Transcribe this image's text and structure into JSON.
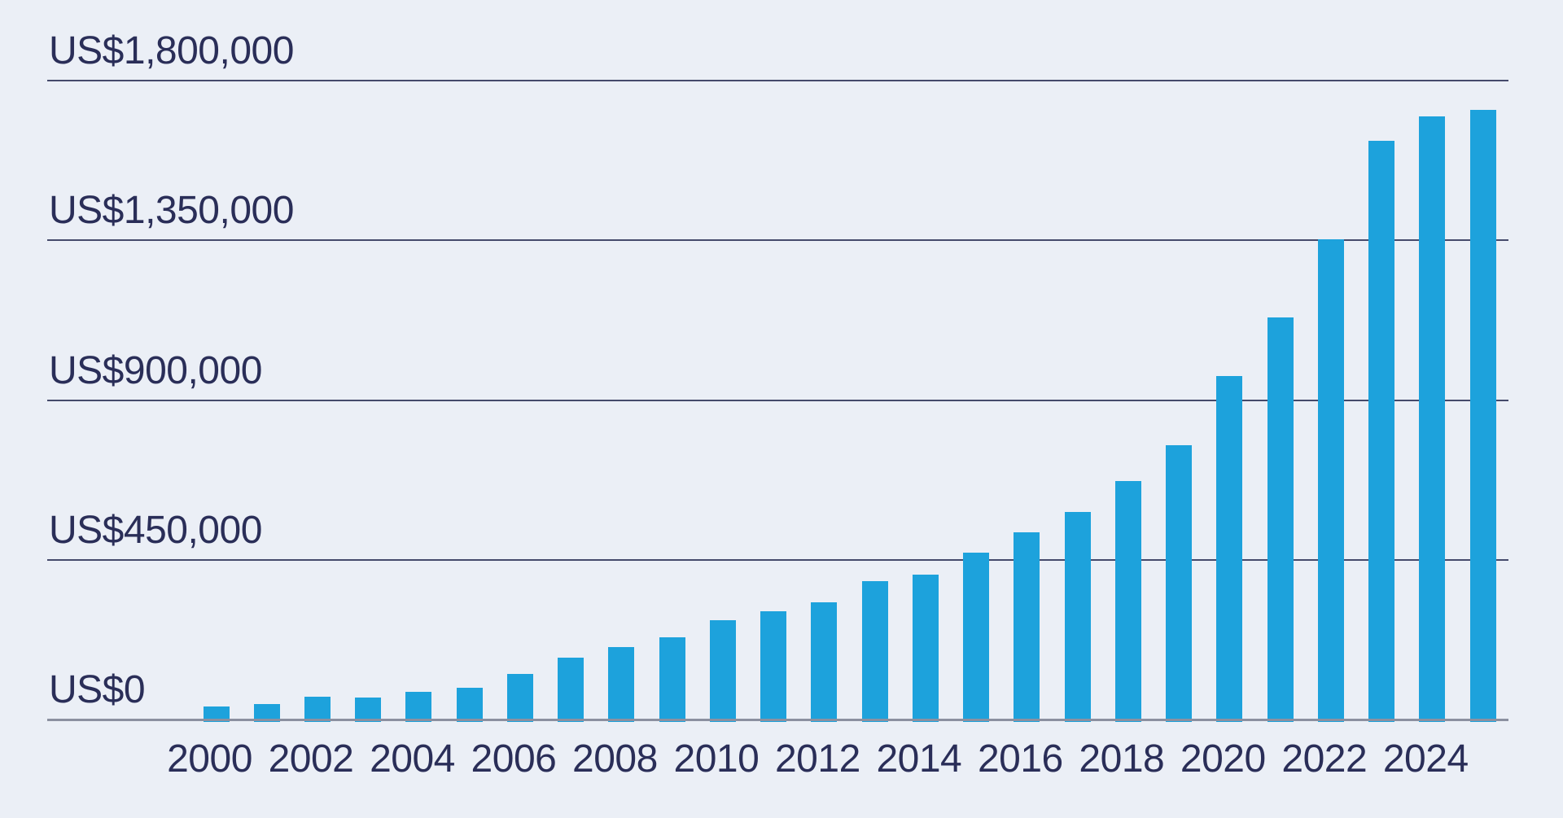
{
  "chart_data": {
    "type": "bar",
    "title": "",
    "xlabel": "",
    "ylabel": "",
    "legend": "none",
    "grid": "horizontal",
    "ylim": [
      0,
      1800000
    ],
    "x": [
      2000,
      2001,
      2002,
      2003,
      2004,
      2005,
      2006,
      2007,
      2008,
      2009,
      2010,
      2011,
      2012,
      2013,
      2014,
      2015,
      2016,
      2017,
      2018,
      2019,
      2020,
      2021,
      2022,
      2023,
      2024,
      2025
    ],
    "values": [
      37000,
      44000,
      64000,
      63000,
      78000,
      90000,
      129000,
      175000,
      205000,
      231000,
      279000,
      305000,
      330000,
      390000,
      409000,
      471000,
      527000,
      584000,
      672000,
      773000,
      967000,
      1132000,
      1352000,
      1630000,
      1698000,
      1718000
    ],
    "yticks": [
      {
        "value": 1800000,
        "label": "US$1,800,000"
      },
      {
        "value": 1350000,
        "label": "US$1,350,000"
      },
      {
        "value": 900000,
        "label": "US$900,000"
      },
      {
        "value": 450000,
        "label": "US$450,000"
      },
      {
        "value": 0,
        "label": "US$0"
      }
    ],
    "xticks": [
      {
        "year": 2000,
        "label": "2000"
      },
      {
        "year": 2002,
        "label": "2002"
      },
      {
        "year": 2004,
        "label": "2004"
      },
      {
        "year": 2006,
        "label": "2006"
      },
      {
        "year": 2008,
        "label": "2008"
      },
      {
        "year": 2010,
        "label": "2010"
      },
      {
        "year": 2012,
        "label": "2012"
      },
      {
        "year": 2014,
        "label": "2014"
      },
      {
        "year": 2016,
        "label": "2016"
      },
      {
        "year": 2018,
        "label": "2018"
      },
      {
        "year": 2020,
        "label": "2020"
      },
      {
        "year": 2022,
        "label": "2022"
      },
      {
        "year": 2024,
        "label": "2024"
      }
    ]
  },
  "colors": {
    "background": "#EBEFF6",
    "bar": "#1DA2DC",
    "text": "#2A2E58",
    "gridline": "#454A6B",
    "baseline": "#8B90A0"
  }
}
